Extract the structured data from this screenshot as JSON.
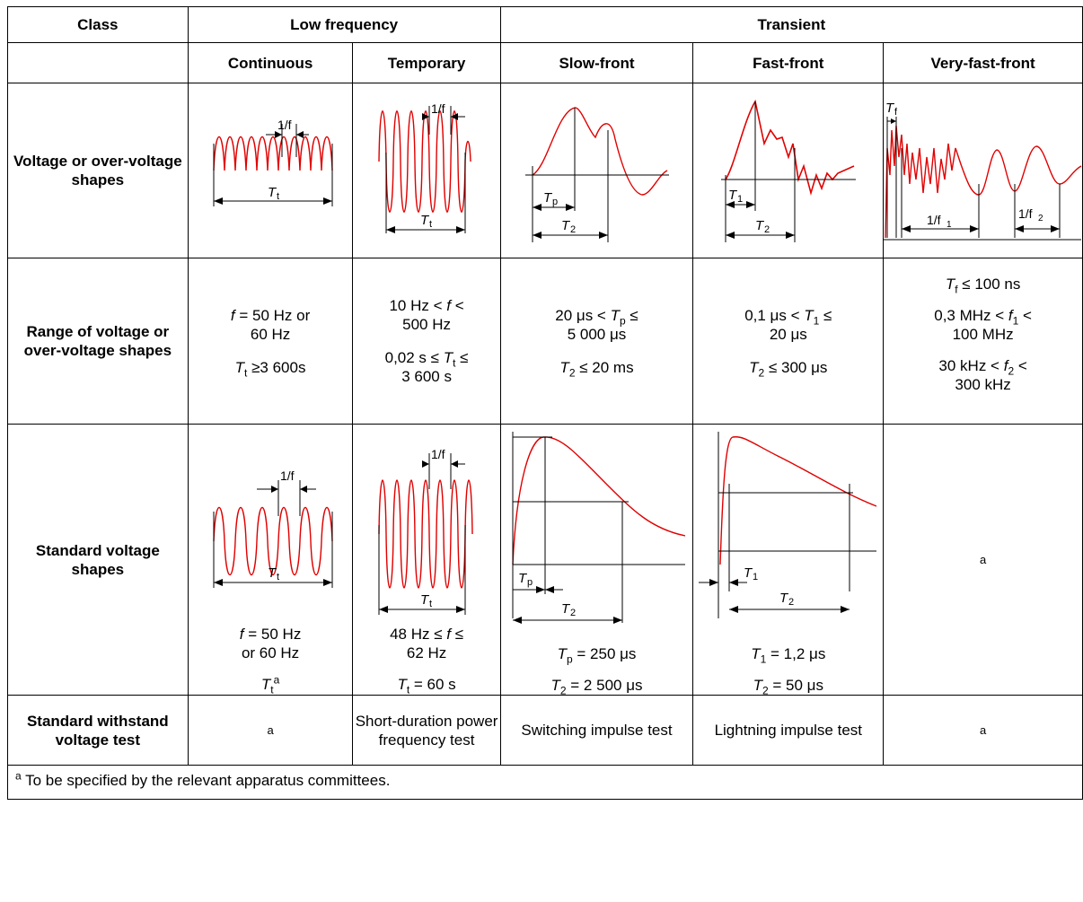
{
  "header": {
    "class": "Class",
    "low_frequency": "Low frequency",
    "transient": "Transient",
    "continuous": "Continuous",
    "temporary": "Temporary",
    "slow_front": "Slow-front",
    "fast_front": "Fast-front",
    "very_fast_front": "Very-fast-front"
  },
  "rows": {
    "shapes": "Voltage or over-voltage shapes",
    "range": "Range of voltage or over-voltage shapes",
    "standard_shapes": "Standard voltage shapes",
    "test": "Standard withstand voltage test"
  },
  "figure_labels": {
    "one_over_f": "1/f",
    "Tt": "T",
    "Tt_sub": "t",
    "Tp": "T",
    "Tp_sub": "p",
    "T1": "T",
    "T1_sub": "1",
    "T2": "T",
    "T2_sub": "2",
    "Tf": "T",
    "Tf_sub": "f",
    "one_over_f1": "1/f",
    "f1_sub": "1",
    "one_over_f2": "1/f",
    "f2_sub": "2"
  },
  "range": {
    "continuous": {
      "l1a": "f",
      "l1b": " = 50 Hz or",
      "l2": "60 Hz",
      "l3a": "T",
      "l3s": "t",
      "l3b": " ≥3 600s"
    },
    "temporary": {
      "l1a": "10 Hz < ",
      "l1b": "f",
      "l1c": " <",
      "l2": "500 Hz",
      "l3a": "0,02 s ≤ ",
      "l3b": "T",
      "l3s": "t",
      "l3c": " ≤",
      "l4": "3 600 s"
    },
    "slow_front": {
      "l1a": "20 μs < ",
      "l1b": "T",
      "l1s": "p",
      "l1c": " ≤",
      "l2": "5 000 μs",
      "l3a": "T",
      "l3s": "2",
      "l3b": " ≤ 20 ms"
    },
    "fast_front": {
      "l1a": "0,1 μs < ",
      "l1b": "T",
      "l1s": "1",
      "l1c": " ≤",
      "l2": "20 μs",
      "l3a": "T",
      "l3s": "2",
      "l3b": " ≤ 300 μs"
    },
    "very_fast_front": {
      "l1a": "T",
      "l1s": "f",
      "l1b": " ≤ 100 ns",
      "l2a": "0,3 MHz < ",
      "l2b": "f",
      "l2s": "1",
      "l2c": " <",
      "l3": "100 MHz",
      "l4a": "30 kHz < ",
      "l4b": "f",
      "l4s": "2",
      "l4c": " <",
      "l5": "300 kHz"
    }
  },
  "standard": {
    "continuous": {
      "l1a": "f",
      "l1b": " = 50 Hz",
      "l2": "or 60 Hz",
      "l3a": "T",
      "l3s": "t",
      "l3sup": "a"
    },
    "temporary": {
      "l1a": "48 Hz ≤ ",
      "l1b": "f",
      "l1c": " ≤",
      "l2": "62 Hz",
      "l3a": "T",
      "l3s": "t",
      "l3b": " = 60 s"
    },
    "slow_front": {
      "l1a": "T",
      "l1s": "p",
      "l1b": " = 250 μs",
      "l2a": "T",
      "l2s": "2",
      "l2b": " = 2 500 μs"
    },
    "fast_front": {
      "l1a": "T",
      "l1s": "1",
      "l1b": " = 1,2 μs",
      "l2a": "T",
      "l2s": "2",
      "l2b": " = 50 μs"
    },
    "very_fast_front": "a"
  },
  "test": {
    "continuous": "a",
    "temporary": "Short-duration power frequency test",
    "slow_front": "Switching impulse test",
    "fast_front": "Lightning impulse test",
    "very_fast_front": "a"
  },
  "footnote": {
    "sup": "a",
    "text": " To be specified by the relevant apparatus committees."
  },
  "colors": {
    "curve": "#e00000",
    "line": "#000000"
  }
}
